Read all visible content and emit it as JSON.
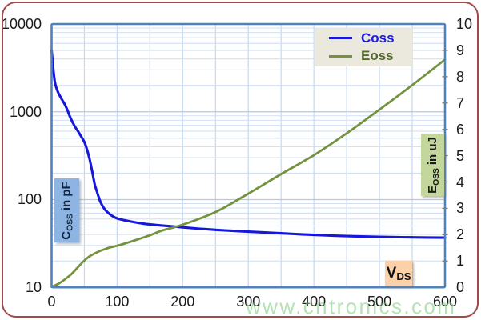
{
  "chart_data": {
    "type": "line",
    "title": "",
    "xlabel": {
      "main": "V",
      "sub": "DS"
    },
    "x_axis": {
      "min": 0,
      "max": 600,
      "tick_step": 100,
      "grid_step": 50,
      "tick_labels": [
        "0",
        "100",
        "200",
        "300",
        "400",
        "500",
        "600"
      ]
    },
    "y_left_axis": {
      "scale": "log",
      "min": 10,
      "max": 10000,
      "title": {
        "main": "C",
        "sub": "OSS",
        "rest": " in pF"
      },
      "tick_labels": [
        "10",
        "100",
        "1000",
        "10000"
      ]
    },
    "y_right_axis": {
      "scale": "linear",
      "min": 0,
      "max": 10,
      "tick_step": 1,
      "title": {
        "main": "E",
        "sub": "OSS",
        "rest": " in uJ"
      },
      "tick_labels": [
        "0",
        "1",
        "2",
        "3",
        "4",
        "5",
        "6",
        "7",
        "8",
        "9",
        "10"
      ]
    },
    "grid": true,
    "legend_position": "top-right",
    "series": [
      {
        "name": "Coss",
        "axis": "left",
        "units": "pF",
        "color": "#1717dc",
        "points": [
          [
            0,
            5000
          ],
          [
            1,
            4150
          ],
          [
            2,
            3400
          ],
          [
            3,
            2850
          ],
          [
            4,
            2460
          ],
          [
            5,
            2180
          ],
          [
            6.5,
            1960
          ],
          [
            8,
            1810
          ],
          [
            10,
            1660
          ],
          [
            13,
            1500
          ],
          [
            16,
            1370
          ],
          [
            20,
            1220
          ],
          [
            24,
            1050
          ],
          [
            28,
            880
          ],
          [
            32,
            760
          ],
          [
            36,
            670
          ],
          [
            40,
            605
          ],
          [
            45,
            525
          ],
          [
            50,
            452
          ],
          [
            54,
            372
          ],
          [
            58,
            288
          ],
          [
            62,
            208
          ],
          [
            66,
            147
          ],
          [
            70,
            118
          ],
          [
            74,
            96
          ],
          [
            78,
            84
          ],
          [
            82,
            76
          ],
          [
            86,
            71
          ],
          [
            90,
            67
          ],
          [
            95,
            63.5
          ],
          [
            100,
            61
          ],
          [
            110,
            58.4
          ],
          [
            120,
            56.4
          ],
          [
            140,
            53.2
          ],
          [
            160,
            51.3
          ],
          [
            180,
            49.8
          ],
          [
            200,
            48.3
          ],
          [
            225,
            46.6
          ],
          [
            250,
            45.2
          ],
          [
            275,
            44.1
          ],
          [
            300,
            43.1
          ],
          [
            325,
            42.2
          ],
          [
            350,
            41.3
          ],
          [
            375,
            40.4
          ],
          [
            400,
            39.6
          ],
          [
            430,
            38.8
          ],
          [
            460,
            38.2
          ],
          [
            500,
            37.6
          ],
          [
            550,
            37.1
          ],
          [
            600,
            36.8
          ]
        ]
      },
      {
        "name": "Eoss",
        "axis": "right",
        "units": "uJ",
        "color": "#75923e",
        "points": [
          [
            0,
            0.02
          ],
          [
            10,
            0.13
          ],
          [
            20,
            0.3
          ],
          [
            30,
            0.5
          ],
          [
            40,
            0.76
          ],
          [
            50,
            1.02
          ],
          [
            60,
            1.21
          ],
          [
            70,
            1.34
          ],
          [
            80,
            1.44
          ],
          [
            90,
            1.52
          ],
          [
            100,
            1.58
          ],
          [
            115,
            1.69
          ],
          [
            130,
            1.81
          ],
          [
            150,
            1.98
          ],
          [
            170,
            2.17
          ],
          [
            187,
            2.28
          ],
          [
            200,
            2.38
          ],
          [
            250,
            2.86
          ],
          [
            300,
            3.56
          ],
          [
            350,
            4.3
          ],
          [
            400,
            5.02
          ],
          [
            450,
            5.85
          ],
          [
            500,
            6.75
          ],
          [
            550,
            7.68
          ],
          [
            600,
            8.65
          ]
        ]
      }
    ]
  },
  "legend": {
    "items": [
      {
        "label": "Coss",
        "color": "#1a1ae0",
        "line_color": "#1717dc"
      },
      {
        "label": "Eoss",
        "color": "#55682b",
        "line_color": "#75923e"
      }
    ]
  },
  "watermark": "www.cntronics.com",
  "colors": {
    "plot_border": "#4f81bd",
    "grid_minor": "#d2e0f2",
    "grid_vertical": "#c6d9f0",
    "grid_major": "#b0c9e7",
    "outer_border": "#a34a46",
    "right_tick": "#7f7f7f",
    "left_box_bg": "#8db4e2",
    "right_box_bg": "#c3d69b",
    "x_box_bg": "#fbd1a9",
    "legend_bg": "#ebe9dd"
  }
}
